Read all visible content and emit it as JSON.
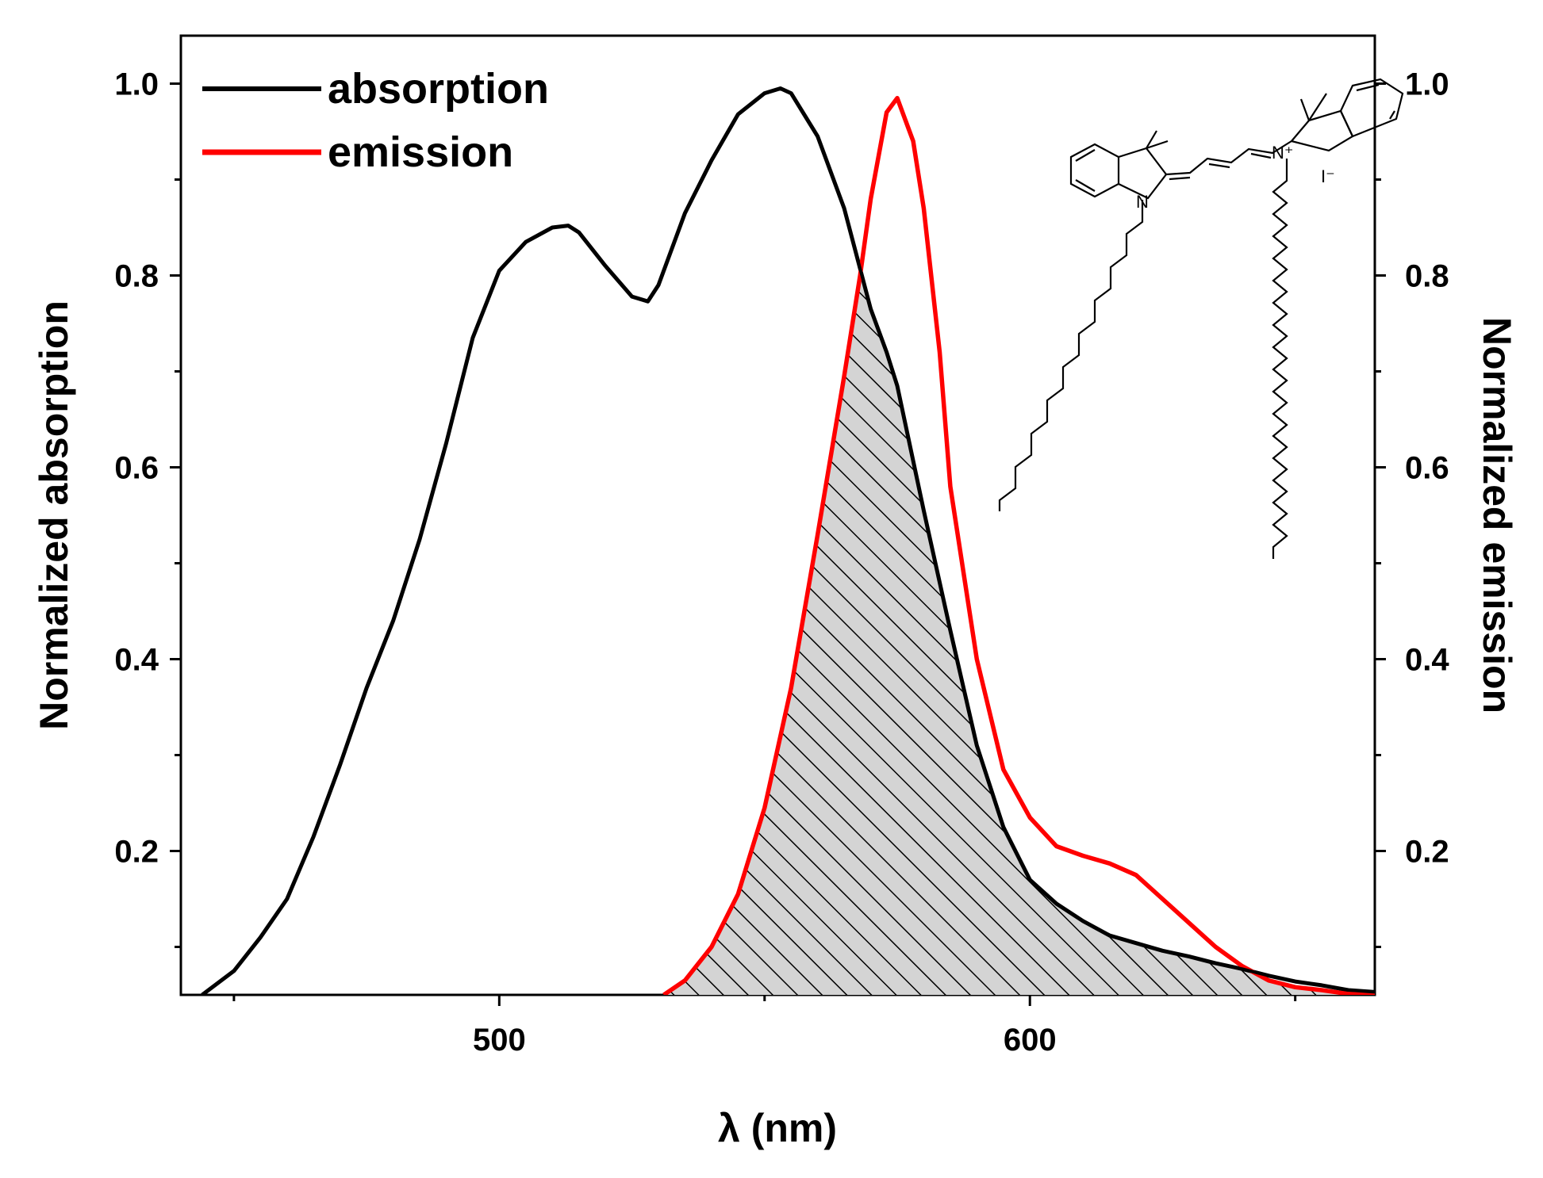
{
  "chart_data": {
    "type": "line",
    "xlabel": "λ (nm)",
    "ylabel_left": "Normalized absorption",
    "ylabel_right": "Normalized emission",
    "xlim": [
      440,
      665
    ],
    "ylim": [
      0.05,
      1.05
    ],
    "x_ticks": [
      500,
      600
    ],
    "y_ticks": [
      0.2,
      0.4,
      0.6,
      0.8,
      1.0
    ],
    "y_tick_labels": [
      "0.2",
      "0.4",
      "0.6",
      "0.8",
      "1.0"
    ],
    "legend_position": "top-left",
    "series": [
      {
        "name": "absorption",
        "color": "#000000",
        "x": [
          444,
          450,
          455,
          460,
          465,
          470,
          475,
          480,
          485,
          490,
          495,
          500,
          505,
          510,
          513,
          515,
          520,
          525,
          528,
          530,
          535,
          540,
          545,
          550,
          553,
          555,
          560,
          565,
          570,
          573,
          575,
          580,
          585,
          590,
          595,
          600,
          605,
          610,
          615,
          620,
          625,
          630,
          635,
          640,
          645,
          650,
          655,
          660,
          665
        ],
        "y": [
          0.05,
          0.075,
          0.11,
          0.15,
          0.215,
          0.29,
          0.37,
          0.44,
          0.525,
          0.625,
          0.735,
          0.805,
          0.835,
          0.85,
          0.852,
          0.845,
          0.81,
          0.778,
          0.773,
          0.79,
          0.865,
          0.92,
          0.968,
          0.99,
          0.995,
          0.99,
          0.945,
          0.87,
          0.765,
          0.72,
          0.685,
          0.555,
          0.43,
          0.31,
          0.225,
          0.17,
          0.145,
          0.127,
          0.112,
          0.104,
          0.096,
          0.09,
          0.083,
          0.077,
          0.07,
          0.064,
          0.06,
          0.055,
          0.053
        ]
      },
      {
        "name": "emission",
        "color": "#ff0000",
        "x": [
          531,
          535,
          540,
          545,
          550,
          555,
          560,
          565,
          568,
          570,
          573,
          575,
          578,
          580,
          583,
          585,
          590,
          595,
          600,
          605,
          610,
          615,
          620,
          625,
          630,
          635,
          640,
          645,
          650,
          655,
          660,
          665
        ],
        "y": [
          0.05,
          0.065,
          0.1,
          0.155,
          0.245,
          0.37,
          0.53,
          0.695,
          0.8,
          0.88,
          0.97,
          0.985,
          0.94,
          0.87,
          0.72,
          0.58,
          0.4,
          0.285,
          0.235,
          0.205,
          0.195,
          0.187,
          0.175,
          0.15,
          0.125,
          0.1,
          0.08,
          0.065,
          0.058,
          0.055,
          0.051,
          0.05
        ]
      }
    ],
    "annotation": {
      "description": "hatched gray overlap region under absorption and emission curves",
      "molecule_labels": [
        "N",
        "N⁺",
        "I⁻"
      ]
    }
  }
}
